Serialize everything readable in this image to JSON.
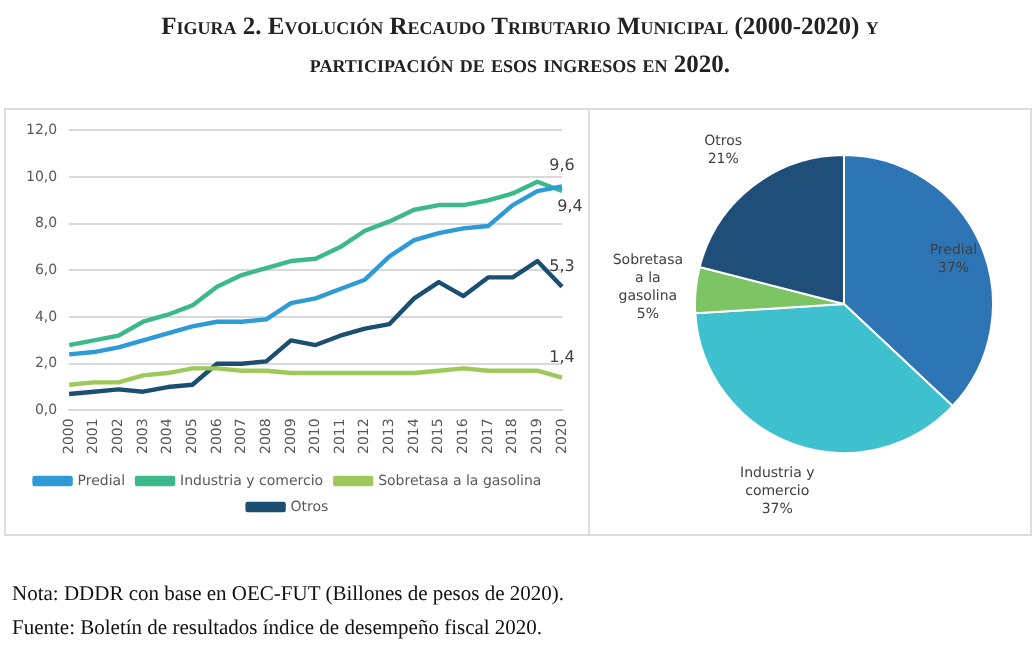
{
  "chart_data": [
    {
      "type": "line",
      "title": "Figura 2. Evolución Recaudo Tributario Municipal (2000-2020) y participación de esos ingresos en 2020.",
      "annotations": [
        "Nota: DDDR con base en OEC-FUT (Billones de pesos de 2020).",
        "Fuente: Boletín de resultados índice de desempeño fiscal 2020."
      ],
      "categories": [
        "2000",
        "2001",
        "2002",
        "2003",
        "2004",
        "2005",
        "2006",
        "2007",
        "2008",
        "2009",
        "2010",
        "2011",
        "2012",
        "2013",
        "2014",
        "2015",
        "2016",
        "2017",
        "2018",
        "2019",
        "2020"
      ],
      "ylim": [
        0,
        12
      ],
      "yticks": [
        {
          "value": 0,
          "label": "0,0"
        },
        {
          "value": 2,
          "label": "2,0"
        },
        {
          "value": 4,
          "label": "4,0"
        },
        {
          "value": 6,
          "label": "6,0"
        },
        {
          "value": 8,
          "label": "8,0"
        },
        {
          "value": 10,
          "label": "10,0"
        },
        {
          "value": 12,
          "label": "12,0"
        }
      ],
      "grid": "y",
      "legend": "bottom",
      "marker": "none",
      "line_style": "solid",
      "series": [
        {
          "name": "Predial",
          "color": "#2e9ad6",
          "values": [
            2.4,
            2.5,
            2.7,
            3.0,
            3.3,
            3.6,
            3.8,
            3.8,
            3.9,
            4.6,
            4.8,
            5.2,
            5.6,
            6.6,
            7.3,
            7.6,
            7.8,
            7.9,
            8.8,
            9.4,
            9.6
          ],
          "value_labels": [
            null,
            null,
            null,
            null,
            null,
            null,
            null,
            null,
            null,
            null,
            null,
            null,
            null,
            null,
            null,
            null,
            null,
            null,
            null,
            null,
            "9,6"
          ]
        },
        {
          "name": "Industria y comercio",
          "color": "#3cb98a",
          "values": [
            2.8,
            3.0,
            3.2,
            3.8,
            4.1,
            4.5,
            5.3,
            5.8,
            6.1,
            6.4,
            6.5,
            7.0,
            7.7,
            8.1,
            8.6,
            8.8,
            8.8,
            9.0,
            9.3,
            9.8,
            9.4
          ],
          "value_labels": [
            null,
            null,
            null,
            null,
            null,
            null,
            null,
            null,
            null,
            null,
            null,
            null,
            null,
            null,
            null,
            null,
            null,
            null,
            null,
            null,
            "9,4"
          ]
        },
        {
          "name": "Sobretasa a la gasolina",
          "color": "#9cc95a",
          "values": [
            1.1,
            1.2,
            1.2,
            1.5,
            1.6,
            1.8,
            1.8,
            1.7,
            1.7,
            1.6,
            1.6,
            1.6,
            1.6,
            1.6,
            1.6,
            1.7,
            1.8,
            1.7,
            1.7,
            1.7,
            1.4
          ],
          "value_labels": [
            null,
            null,
            null,
            null,
            null,
            null,
            null,
            null,
            null,
            null,
            null,
            null,
            null,
            null,
            null,
            null,
            null,
            null,
            null,
            null,
            "1,4"
          ]
        },
        {
          "name": "Otros",
          "color": "#1b4f72",
          "values": [
            0.7,
            0.8,
            0.9,
            0.8,
            1.0,
            1.1,
            2.0,
            2.0,
            2.1,
            3.0,
            2.8,
            3.2,
            3.5,
            3.7,
            4.8,
            5.5,
            4.9,
            5.7,
            5.7,
            6.4,
            5.3
          ],
          "value_labels": [
            null,
            null,
            null,
            null,
            null,
            null,
            null,
            null,
            null,
            null,
            null,
            null,
            null,
            null,
            null,
            null,
            null,
            null,
            null,
            null,
            "5,3"
          ]
        }
      ]
    },
    {
      "type": "pie",
      "categories": [
        "Predial",
        "Industria y comercio",
        "Sobretasa a la gasolina",
        "Otros"
      ],
      "values": [
        37,
        37,
        5,
        21
      ],
      "value_labels": [
        "37%",
        "37%",
        "5%",
        "21%"
      ],
      "colors": [
        "#2e75b6",
        "#3fc0cf",
        "#7cc464",
        "#1f4e79"
      ],
      "legend": false
    }
  ]
}
